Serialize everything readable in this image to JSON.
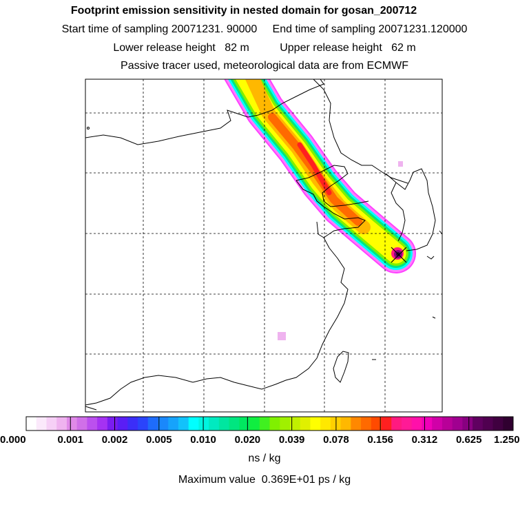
{
  "header": {
    "title": "Footprint emission sensitivity in nested domain for gosan_200712",
    "sampling_line": "Start time of sampling 20071231. 90000     End time of sampling 20071231.120000",
    "release_line": "Lower release height   82 m          Upper release height   62 m",
    "tracer_line": "Passive tracer used, meteorological data are from ECMWF"
  },
  "colorbar": {
    "labels": [
      "0.000",
      "0.001",
      "0.002",
      "0.005",
      "0.010",
      "0.020",
      "0.039",
      "0.078",
      "0.156",
      "0.312",
      "0.625",
      "1.250"
    ],
    "colors": [
      "#ffffff",
      "#fbe9fb",
      "#f6d0f6",
      "#efb3ef",
      "#e08ae8",
      "#d070e8",
      "#bb50ee",
      "#a532f2",
      "#7a1df0",
      "#5a1ef5",
      "#3b2ef8",
      "#2a44fb",
      "#1e6cfb",
      "#1a88fb",
      "#16a3fb",
      "#12c2fb",
      "#00ffff",
      "#00f5e0",
      "#00eac0",
      "#00e6a0",
      "#00e680",
      "#00e860",
      "#10ee40",
      "#40f020",
      "#80f000",
      "#a0f000",
      "#c0f000",
      "#e0f000",
      "#ffff00",
      "#ffe800",
      "#ffd000",
      "#ffb800",
      "#ff8800",
      "#ff6a00",
      "#ff4a00",
      "#ff2020",
      "#ff1a80",
      "#ff1a96",
      "#ff10aa",
      "#f000b8",
      "#d000a8",
      "#b80098",
      "#a00090",
      "#880080",
      "#600060",
      "#500050",
      "#400040",
      "#300030"
    ],
    "unit": "ns / kg"
  },
  "summary": {
    "max_value": "Maximum value  0.369E+01 ps / kg"
  },
  "map": {
    "receptor_name": "gosan",
    "frame_color": "#000000"
  }
}
